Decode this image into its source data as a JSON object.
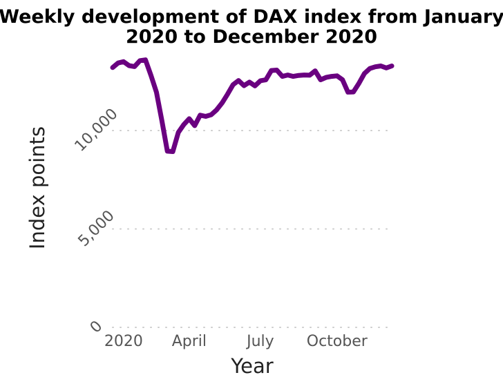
{
  "chart_data": {
    "type": "line",
    "title_lines": [
      "Weekly development of DAX index from January",
      "2020 to December 2020"
    ],
    "xlabel": "Year",
    "ylabel": "Index points",
    "ylim": [
      0,
      14000
    ],
    "xlim": [
      "2019-12-30",
      "2020-12-21"
    ],
    "grid": {
      "x": false,
      "y": true
    },
    "legend": "none",
    "yticks": [
      {
        "value": 0,
        "label": "0"
      },
      {
        "value": 5000,
        "label": "5,000"
      },
      {
        "value": 10000,
        "label": "10,000"
      }
    ],
    "xticks": [
      {
        "date": "2020-01-13",
        "label": "2020"
      },
      {
        "date": "2020-04-06",
        "label": "April"
      },
      {
        "date": "2020-07-06",
        "label": "July"
      },
      {
        "date": "2020-10-12",
        "label": "October"
      }
    ],
    "series": [
      {
        "color": "#6a0080",
        "x": [
          "2019-12-30",
          "2020-01-06",
          "2020-01-13",
          "2020-01-20",
          "2020-01-27",
          "2020-02-03",
          "2020-02-10",
          "2020-02-17",
          "2020-02-24",
          "2020-03-02",
          "2020-03-09",
          "2020-03-16",
          "2020-03-23",
          "2020-03-30",
          "2020-04-06",
          "2020-04-13",
          "2020-04-20",
          "2020-04-27",
          "2020-05-04",
          "2020-05-11",
          "2020-05-18",
          "2020-05-25",
          "2020-06-01",
          "2020-06-08",
          "2020-06-15",
          "2020-06-22",
          "2020-06-29",
          "2020-07-06",
          "2020-07-13",
          "2020-07-20",
          "2020-07-27",
          "2020-08-03",
          "2020-08-10",
          "2020-08-17",
          "2020-08-24",
          "2020-08-31",
          "2020-09-07",
          "2020-09-14",
          "2020-09-21",
          "2020-09-28",
          "2020-10-05",
          "2020-10-12",
          "2020-10-19",
          "2020-10-26",
          "2020-11-02",
          "2020-11-09",
          "2020-11-16",
          "2020-11-23",
          "2020-11-30",
          "2020-12-07",
          "2020-12-14",
          "2020-12-21"
        ],
        "y": [
          13200,
          13430,
          13500,
          13300,
          13250,
          13550,
          13590,
          12800,
          11950,
          10500,
          8950,
          8930,
          9900,
          10300,
          10600,
          10250,
          10780,
          10720,
          10800,
          11050,
          11400,
          11850,
          12330,
          12540,
          12280,
          12460,
          12270,
          12530,
          12580,
          13050,
          13070,
          12750,
          12820,
          12750,
          12800,
          12820,
          12810,
          13030,
          12580,
          12700,
          12750,
          12780,
          12580,
          11950,
          11960,
          12400,
          12900,
          13150,
          13240,
          13280,
          13180,
          13280
        ]
      }
    ]
  }
}
